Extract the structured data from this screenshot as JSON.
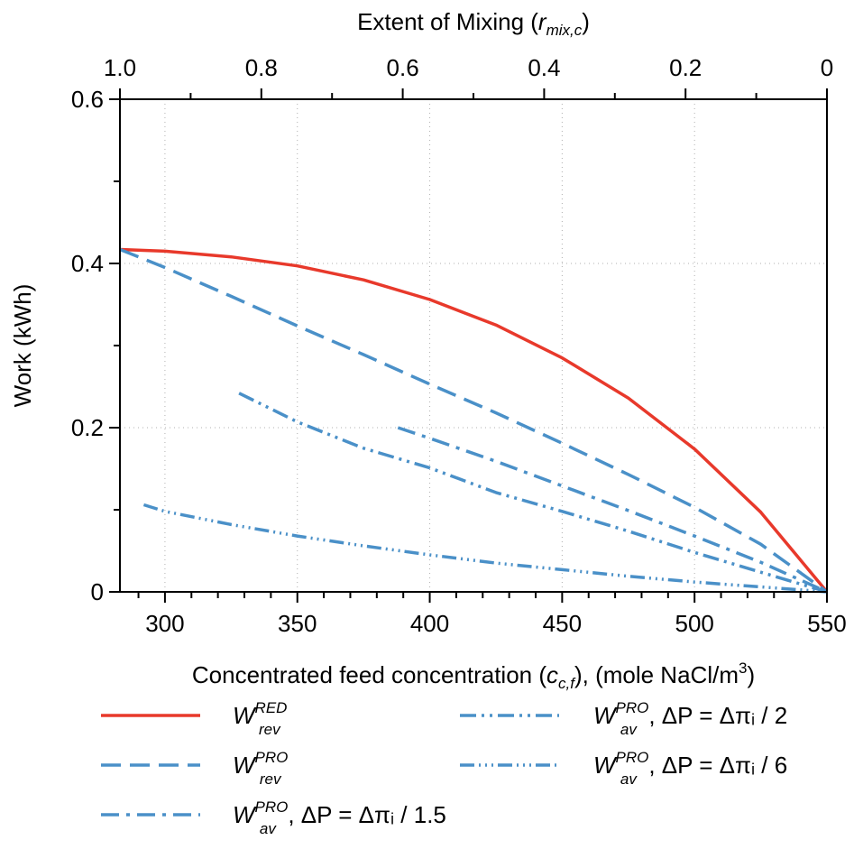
{
  "chart_data": {
    "type": "line",
    "x_axis": {
      "label_prefix": "Concentrated feed concentration (",
      "label_var": "c",
      "label_var_sub": "c,f",
      "label_suffix": "), (mole NaCl/m",
      "label_sup": "3",
      "label_end": ")",
      "range": [
        283,
        550
      ],
      "ticks": [
        300,
        350,
        400,
        450,
        500,
        550
      ],
      "tick_labels": [
        "300",
        "350",
        "400",
        "450",
        "500",
        "550"
      ]
    },
    "top_axis": {
      "label_prefix": "Extent of Mixing (",
      "label_var": "r",
      "label_var_sub": "mix,c",
      "label_end": ")",
      "ticks": [
        1.0,
        0.8,
        0.6,
        0.4,
        0.2,
        0
      ],
      "tick_labels": [
        "1.0",
        "0.8",
        "0.6",
        "0.4",
        "0.2",
        "0"
      ]
    },
    "y_axis": {
      "label": "Work (kWh)",
      "range": [
        0,
        0.6
      ],
      "ticks": [
        0,
        0.2,
        0.4,
        0.6
      ],
      "tick_labels": [
        "0",
        "0.2",
        "0.4",
        "0.6"
      ]
    },
    "grid": "dotted",
    "legend_position": "bottom",
    "series": [
      {
        "key": "wrev_red",
        "legend": {
          "main": "W",
          "sub": "rev",
          "sup": "RED",
          "suffix": ""
        },
        "color": "#e8392b",
        "style": "solid",
        "x": [
          283,
          300,
          325,
          350,
          375,
          400,
          425,
          450,
          475,
          500,
          525,
          550
        ],
        "y": [
          0.417,
          0.415,
          0.408,
          0.397,
          0.38,
          0.356,
          0.325,
          0.285,
          0.236,
          0.174,
          0.097,
          0.0
        ]
      },
      {
        "key": "wrev_pro",
        "legend": {
          "main": "W",
          "sub": "rev",
          "sup": "PRO",
          "suffix": ""
        },
        "color": "#4a90c8",
        "style": "dashed",
        "x": [
          283,
          300,
          325,
          350,
          375,
          400,
          425,
          450,
          475,
          500,
          525,
          550
        ],
        "y": [
          0.417,
          0.395,
          0.36,
          0.324,
          0.289,
          0.253,
          0.218,
          0.181,
          0.143,
          0.103,
          0.058,
          0.0
        ]
      },
      {
        "key": "wav_15",
        "legend": {
          "main": "W",
          "sub": "av",
          "sup": "PRO",
          "suffix": ", ΔP = Δπᵢ / 1.5"
        },
        "color": "#4a90c8",
        "style": "dashdot",
        "x": [
          388,
          400,
          425,
          450,
          475,
          500,
          525,
          550
        ],
        "y": [
          0.2,
          0.187,
          0.159,
          0.129,
          0.099,
          0.068,
          0.036,
          0.0
        ]
      },
      {
        "key": "wav_2",
        "legend": {
          "main": "W",
          "sub": "av",
          "sup": "PRO",
          "suffix": ", ΔP = Δπᵢ / 2"
        },
        "color": "#4a90c8",
        "style": "dashdotdot",
        "x": [
          328,
          350,
          375,
          400,
          425,
          450,
          475,
          500,
          525,
          550
        ],
        "y": [
          0.242,
          0.207,
          0.175,
          0.151,
          0.121,
          0.098,
          0.074,
          0.048,
          0.024,
          0.0
        ]
      },
      {
        "key": "wav_6",
        "legend": {
          "main": "W",
          "sub": "av",
          "sup": "PRO",
          "suffix": ", ΔP = Δπᵢ / 6"
        },
        "color": "#4a90c8",
        "style": "dashdotdotdot",
        "x": [
          292,
          300,
          325,
          350,
          375,
          400,
          425,
          450,
          475,
          500,
          525,
          550
        ],
        "y": [
          0.106,
          0.098,
          0.082,
          0.068,
          0.056,
          0.045,
          0.035,
          0.027,
          0.019,
          0.012,
          0.006,
          0.0
        ]
      }
    ]
  }
}
